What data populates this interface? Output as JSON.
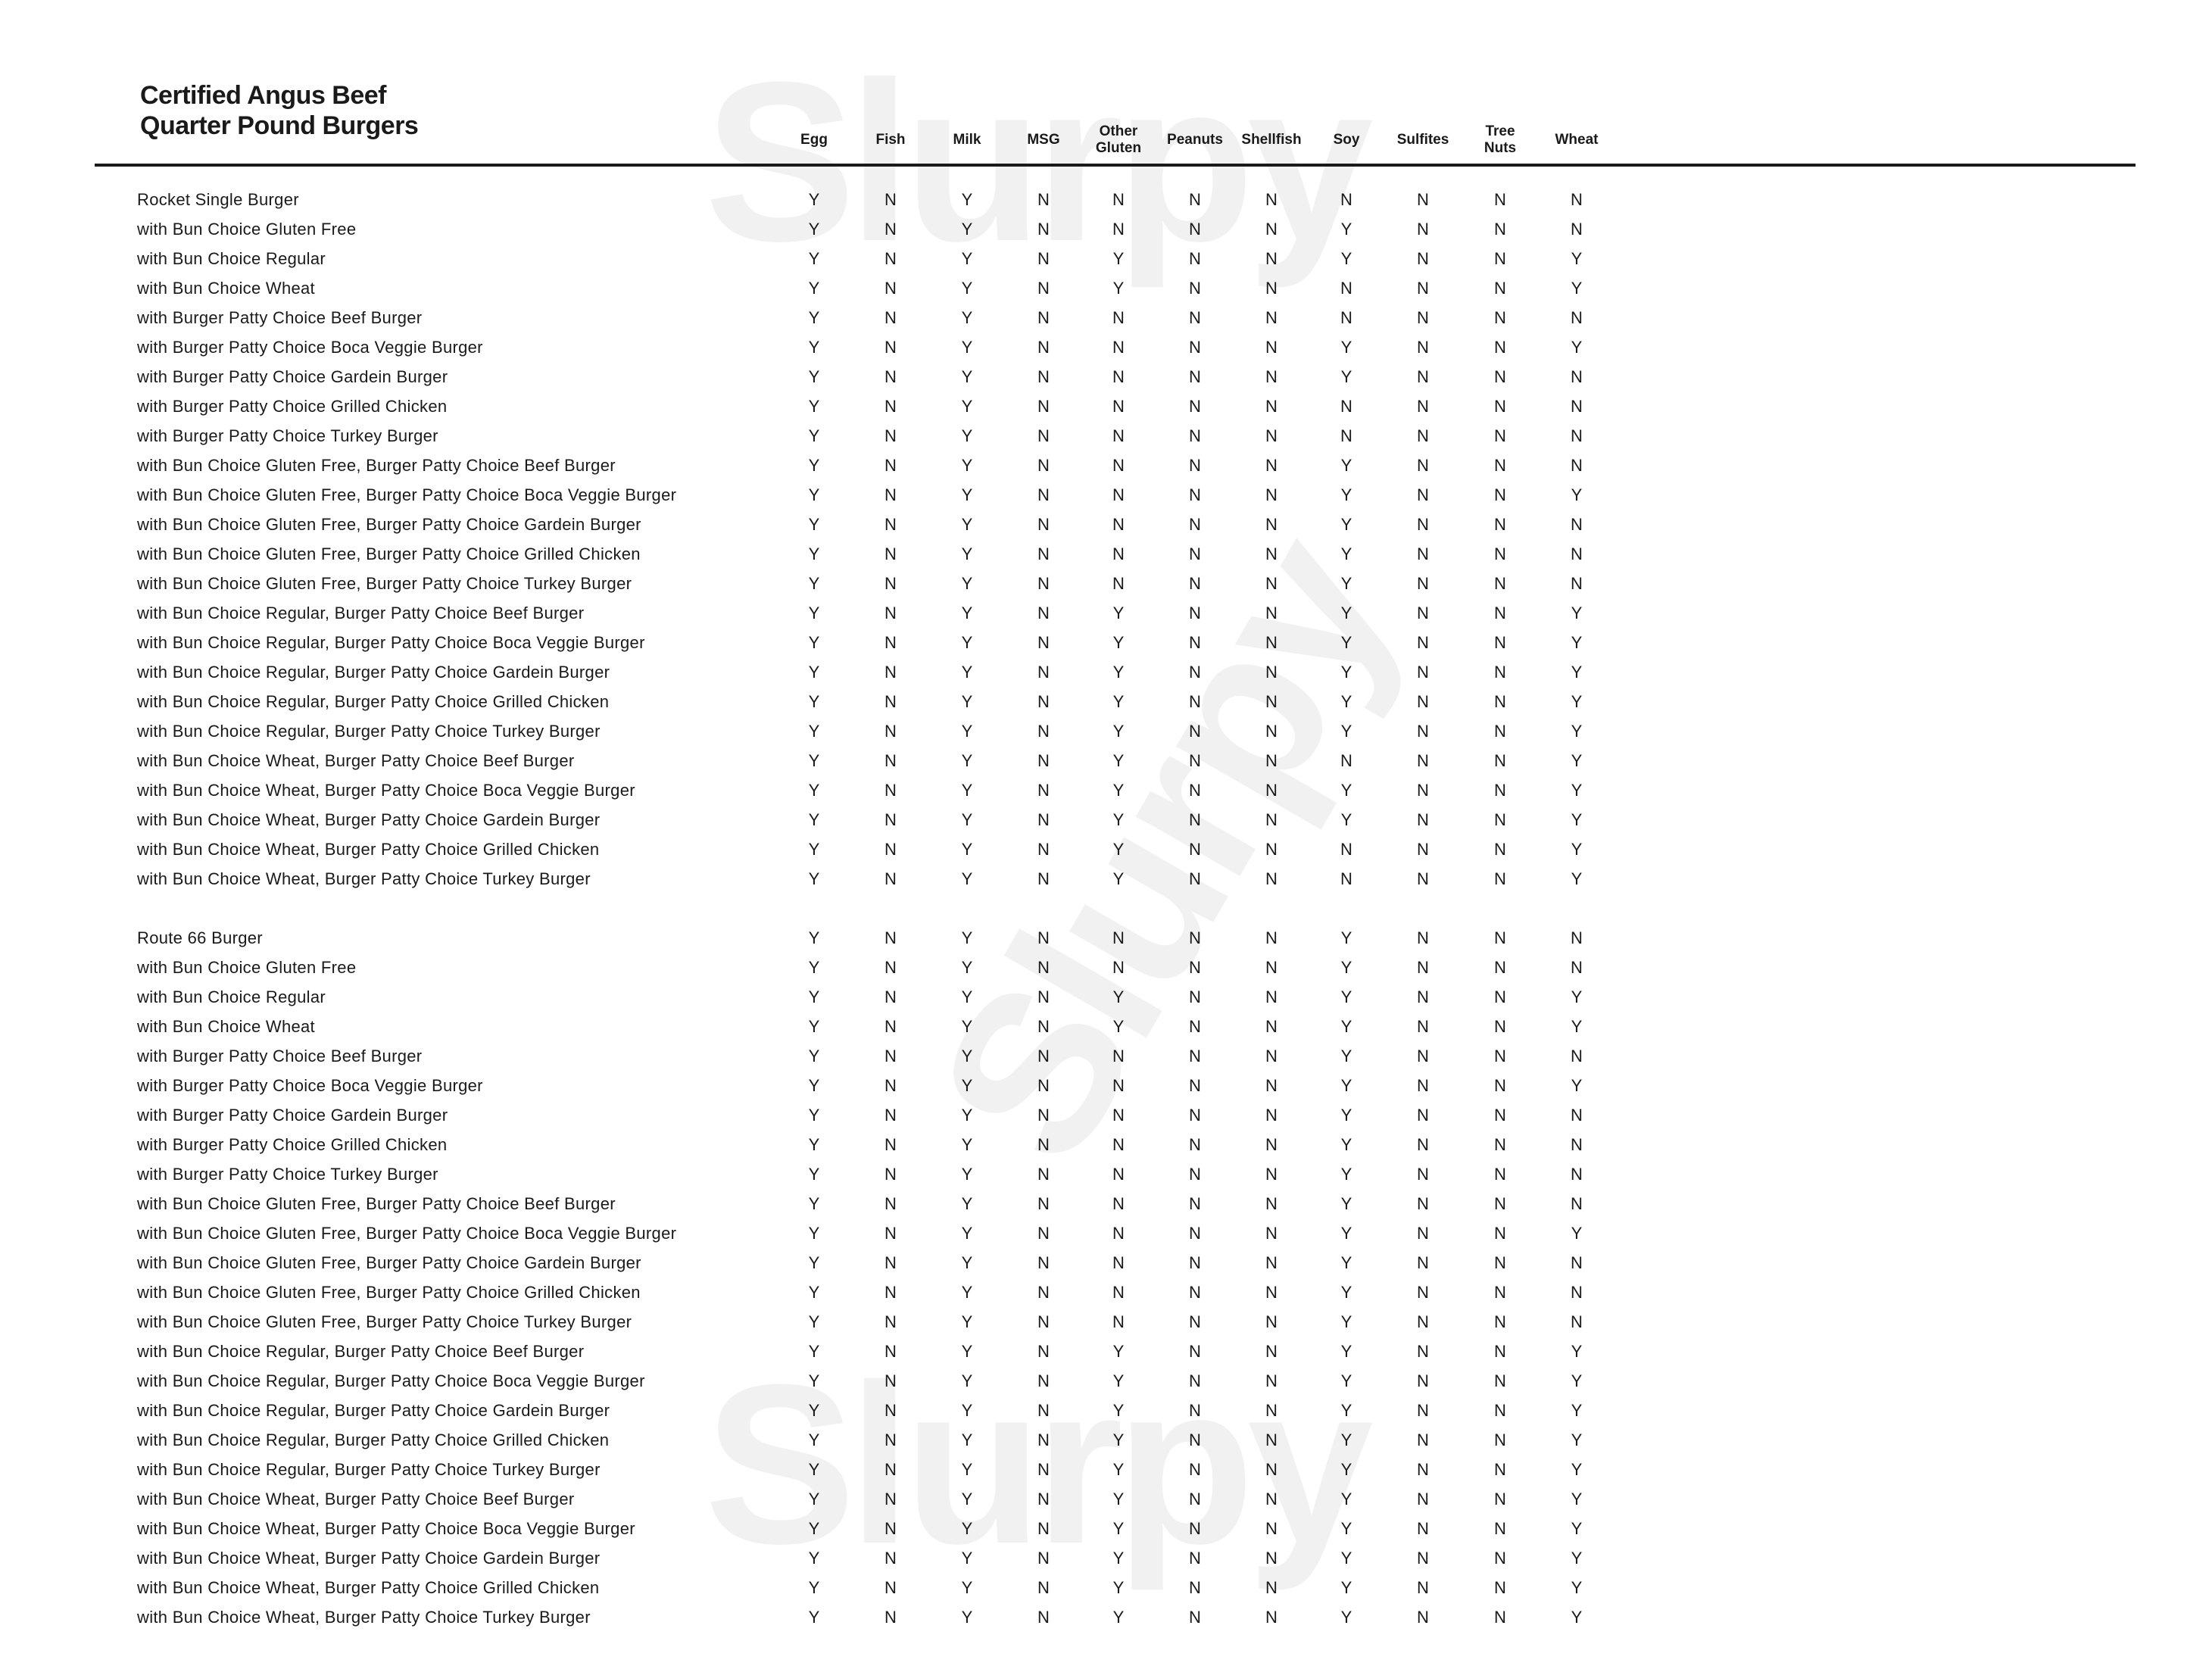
{
  "title": {
    "line1": "Certified Angus Beef",
    "line2": "Quarter Pound Burgers"
  },
  "watermark": "Slurpy",
  "columns": [
    "Egg",
    "Fish",
    "Milk",
    "MSG",
    "Other Gluten",
    "Peanuts",
    "Shellfish",
    "Soy",
    "Sulfites",
    "Tree Nuts",
    "Wheat"
  ],
  "sections": [
    {
      "rows": [
        {
          "item": "Rocket Single Burger",
          "values": [
            "Y",
            "N",
            "Y",
            "N",
            "N",
            "N",
            "N",
            "N",
            "N",
            "N",
            "N"
          ]
        },
        {
          "item": "with Bun Choice Gluten Free",
          "values": [
            "Y",
            "N",
            "Y",
            "N",
            "N",
            "N",
            "N",
            "Y",
            "N",
            "N",
            "N"
          ]
        },
        {
          "item": "with Bun Choice Regular",
          "values": [
            "Y",
            "N",
            "Y",
            "N",
            "Y",
            "N",
            "N",
            "Y",
            "N",
            "N",
            "Y"
          ]
        },
        {
          "item": "with Bun Choice Wheat",
          "values": [
            "Y",
            "N",
            "Y",
            "N",
            "Y",
            "N",
            "N",
            "N",
            "N",
            "N",
            "Y"
          ]
        },
        {
          "item": "with Burger Patty Choice Beef Burger",
          "values": [
            "Y",
            "N",
            "Y",
            "N",
            "N",
            "N",
            "N",
            "N",
            "N",
            "N",
            "N"
          ]
        },
        {
          "item": "with Burger Patty Choice Boca Veggie Burger",
          "values": [
            "Y",
            "N",
            "Y",
            "N",
            "N",
            "N",
            "N",
            "Y",
            "N",
            "N",
            "Y"
          ]
        },
        {
          "item": "with Burger Patty Choice Gardein Burger",
          "values": [
            "Y",
            "N",
            "Y",
            "N",
            "N",
            "N",
            "N",
            "Y",
            "N",
            "N",
            "N"
          ]
        },
        {
          "item": "with Burger Patty Choice Grilled Chicken",
          "values": [
            "Y",
            "N",
            "Y",
            "N",
            "N",
            "N",
            "N",
            "N",
            "N",
            "N",
            "N"
          ]
        },
        {
          "item": "with Burger Patty Choice Turkey Burger",
          "values": [
            "Y",
            "N",
            "Y",
            "N",
            "N",
            "N",
            "N",
            "N",
            "N",
            "N",
            "N"
          ]
        },
        {
          "item": "with Bun Choice Gluten Free, Burger Patty Choice Beef Burger",
          "values": [
            "Y",
            "N",
            "Y",
            "N",
            "N",
            "N",
            "N",
            "Y",
            "N",
            "N",
            "N"
          ]
        },
        {
          "item": "with Bun Choice Gluten Free, Burger Patty Choice Boca Veggie Burger",
          "values": [
            "Y",
            "N",
            "Y",
            "N",
            "N",
            "N",
            "N",
            "Y",
            "N",
            "N",
            "Y"
          ]
        },
        {
          "item": "with Bun Choice Gluten Free, Burger Patty Choice Gardein Burger",
          "values": [
            "Y",
            "N",
            "Y",
            "N",
            "N",
            "N",
            "N",
            "Y",
            "N",
            "N",
            "N"
          ]
        },
        {
          "item": "with Bun Choice Gluten Free, Burger Patty Choice Grilled Chicken",
          "values": [
            "Y",
            "N",
            "Y",
            "N",
            "N",
            "N",
            "N",
            "Y",
            "N",
            "N",
            "N"
          ]
        },
        {
          "item": "with Bun Choice Gluten Free, Burger Patty Choice Turkey Burger",
          "values": [
            "Y",
            "N",
            "Y",
            "N",
            "N",
            "N",
            "N",
            "Y",
            "N",
            "N",
            "N"
          ]
        },
        {
          "item": "with Bun Choice Regular, Burger Patty Choice Beef Burger",
          "values": [
            "Y",
            "N",
            "Y",
            "N",
            "Y",
            "N",
            "N",
            "Y",
            "N",
            "N",
            "Y"
          ]
        },
        {
          "item": "with Bun Choice Regular, Burger Patty Choice Boca Veggie Burger",
          "values": [
            "Y",
            "N",
            "Y",
            "N",
            "Y",
            "N",
            "N",
            "Y",
            "N",
            "N",
            "Y"
          ]
        },
        {
          "item": "with Bun Choice Regular, Burger Patty Choice Gardein Burger",
          "values": [
            "Y",
            "N",
            "Y",
            "N",
            "Y",
            "N",
            "N",
            "Y",
            "N",
            "N",
            "Y"
          ]
        },
        {
          "item": "with Bun Choice Regular, Burger Patty Choice Grilled Chicken",
          "values": [
            "Y",
            "N",
            "Y",
            "N",
            "Y",
            "N",
            "N",
            "Y",
            "N",
            "N",
            "Y"
          ]
        },
        {
          "item": "with Bun Choice Regular, Burger Patty Choice Turkey Burger",
          "values": [
            "Y",
            "N",
            "Y",
            "N",
            "Y",
            "N",
            "N",
            "Y",
            "N",
            "N",
            "Y"
          ]
        },
        {
          "item": "with Bun Choice Wheat, Burger Patty Choice Beef Burger",
          "values": [
            "Y",
            "N",
            "Y",
            "N",
            "Y",
            "N",
            "N",
            "N",
            "N",
            "N",
            "Y"
          ]
        },
        {
          "item": "with Bun Choice Wheat, Burger Patty Choice Boca Veggie Burger",
          "values": [
            "Y",
            "N",
            "Y",
            "N",
            "Y",
            "N",
            "N",
            "Y",
            "N",
            "N",
            "Y"
          ]
        },
        {
          "item": "with Bun Choice Wheat, Burger Patty Choice Gardein Burger",
          "values": [
            "Y",
            "N",
            "Y",
            "N",
            "Y",
            "N",
            "N",
            "Y",
            "N",
            "N",
            "Y"
          ]
        },
        {
          "item": "with Bun Choice Wheat, Burger Patty Choice Grilled Chicken",
          "values": [
            "Y",
            "N",
            "Y",
            "N",
            "Y",
            "N",
            "N",
            "N",
            "N",
            "N",
            "Y"
          ]
        },
        {
          "item": "with Bun Choice Wheat, Burger Patty Choice Turkey Burger",
          "values": [
            "Y",
            "N",
            "Y",
            "N",
            "Y",
            "N",
            "N",
            "N",
            "N",
            "N",
            "Y"
          ]
        }
      ]
    },
    {
      "rows": [
        {
          "item": "Route 66 Burger",
          "values": [
            "Y",
            "N",
            "Y",
            "N",
            "N",
            "N",
            "N",
            "Y",
            "N",
            "N",
            "N"
          ]
        },
        {
          "item": "with Bun Choice Gluten Free",
          "values": [
            "Y",
            "N",
            "Y",
            "N",
            "N",
            "N",
            "N",
            "Y",
            "N",
            "N",
            "N"
          ]
        },
        {
          "item": "with Bun Choice Regular",
          "values": [
            "Y",
            "N",
            "Y",
            "N",
            "Y",
            "N",
            "N",
            "Y",
            "N",
            "N",
            "Y"
          ]
        },
        {
          "item": "with Bun Choice Wheat",
          "values": [
            "Y",
            "N",
            "Y",
            "N",
            "Y",
            "N",
            "N",
            "Y",
            "N",
            "N",
            "Y"
          ]
        },
        {
          "item": "with Burger Patty Choice Beef Burger",
          "values": [
            "Y",
            "N",
            "Y",
            "N",
            "N",
            "N",
            "N",
            "Y",
            "N",
            "N",
            "N"
          ]
        },
        {
          "item": "with Burger Patty Choice Boca Veggie Burger",
          "values": [
            "Y",
            "N",
            "Y",
            "N",
            "N",
            "N",
            "N",
            "Y",
            "N",
            "N",
            "Y"
          ]
        },
        {
          "item": "with Burger Patty Choice Gardein Burger",
          "values": [
            "Y",
            "N",
            "Y",
            "N",
            "N",
            "N",
            "N",
            "Y",
            "N",
            "N",
            "N"
          ]
        },
        {
          "item": "with Burger Patty Choice Grilled Chicken",
          "values": [
            "Y",
            "N",
            "Y",
            "N",
            "N",
            "N",
            "N",
            "Y",
            "N",
            "N",
            "N"
          ]
        },
        {
          "item": "with Burger Patty Choice Turkey Burger",
          "values": [
            "Y",
            "N",
            "Y",
            "N",
            "N",
            "N",
            "N",
            "Y",
            "N",
            "N",
            "N"
          ]
        },
        {
          "item": "with Bun Choice Gluten Free, Burger Patty Choice Beef Burger",
          "values": [
            "Y",
            "N",
            "Y",
            "N",
            "N",
            "N",
            "N",
            "Y",
            "N",
            "N",
            "N"
          ]
        },
        {
          "item": "with Bun Choice Gluten Free, Burger Patty Choice Boca Veggie Burger",
          "values": [
            "Y",
            "N",
            "Y",
            "N",
            "N",
            "N",
            "N",
            "Y",
            "N",
            "N",
            "Y"
          ]
        },
        {
          "item": "with Bun Choice Gluten Free, Burger Patty Choice Gardein Burger",
          "values": [
            "Y",
            "N",
            "Y",
            "N",
            "N",
            "N",
            "N",
            "Y",
            "N",
            "N",
            "N"
          ]
        },
        {
          "item": "with Bun Choice Gluten Free, Burger Patty Choice Grilled Chicken",
          "values": [
            "Y",
            "N",
            "Y",
            "N",
            "N",
            "N",
            "N",
            "Y",
            "N",
            "N",
            "N"
          ]
        },
        {
          "item": "with Bun Choice Gluten Free, Burger Patty Choice Turkey Burger",
          "values": [
            "Y",
            "N",
            "Y",
            "N",
            "N",
            "N",
            "N",
            "Y",
            "N",
            "N",
            "N"
          ]
        },
        {
          "item": "with Bun Choice Regular, Burger Patty Choice Beef Burger",
          "values": [
            "Y",
            "N",
            "Y",
            "N",
            "Y",
            "N",
            "N",
            "Y",
            "N",
            "N",
            "Y"
          ]
        },
        {
          "item": "with Bun Choice Regular, Burger Patty Choice Boca Veggie Burger",
          "values": [
            "Y",
            "N",
            "Y",
            "N",
            "Y",
            "N",
            "N",
            "Y",
            "N",
            "N",
            "Y"
          ]
        },
        {
          "item": "with Bun Choice Regular, Burger Patty Choice Gardein Burger",
          "values": [
            "Y",
            "N",
            "Y",
            "N",
            "Y",
            "N",
            "N",
            "Y",
            "N",
            "N",
            "Y"
          ]
        },
        {
          "item": "with Bun Choice Regular, Burger Patty Choice Grilled Chicken",
          "values": [
            "Y",
            "N",
            "Y",
            "N",
            "Y",
            "N",
            "N",
            "Y",
            "N",
            "N",
            "Y"
          ]
        },
        {
          "item": "with Bun Choice Regular, Burger Patty Choice Turkey Burger",
          "values": [
            "Y",
            "N",
            "Y",
            "N",
            "Y",
            "N",
            "N",
            "Y",
            "N",
            "N",
            "Y"
          ]
        },
        {
          "item": "with Bun Choice Wheat, Burger Patty Choice Beef Burger",
          "values": [
            "Y",
            "N",
            "Y",
            "N",
            "Y",
            "N",
            "N",
            "Y",
            "N",
            "N",
            "Y"
          ]
        },
        {
          "item": "with Bun Choice Wheat, Burger Patty Choice Boca Veggie Burger",
          "values": [
            "Y",
            "N",
            "Y",
            "N",
            "Y",
            "N",
            "N",
            "Y",
            "N",
            "N",
            "Y"
          ]
        },
        {
          "item": "with Bun Choice Wheat, Burger Patty Choice Gardein Burger",
          "values": [
            "Y",
            "N",
            "Y",
            "N",
            "Y",
            "N",
            "N",
            "Y",
            "N",
            "N",
            "Y"
          ]
        },
        {
          "item": "with Bun Choice Wheat, Burger Patty Choice Grilled Chicken",
          "values": [
            "Y",
            "N",
            "Y",
            "N",
            "Y",
            "N",
            "N",
            "Y",
            "N",
            "N",
            "Y"
          ]
        },
        {
          "item": "with Bun Choice Wheat, Burger Patty Choice Turkey Burger",
          "values": [
            "Y",
            "N",
            "Y",
            "N",
            "Y",
            "N",
            "N",
            "Y",
            "N",
            "N",
            "Y"
          ]
        }
      ]
    }
  ]
}
